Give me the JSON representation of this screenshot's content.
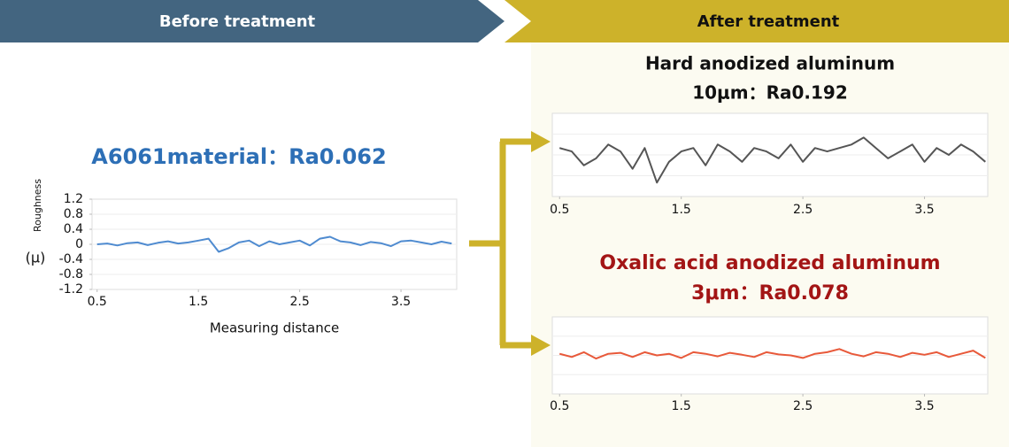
{
  "header": {
    "before": "Before treatment",
    "after": "After treatment"
  },
  "chart_data": [
    {
      "type": "line",
      "title": "A6061material：Ra0.062",
      "ylabel": "Roughness",
      "y_unit": "(μ)",
      "xlabel": "Measuring distance",
      "color": "#4f8bd0",
      "title_color": "#2d6fb6",
      "xlim": [
        0.45,
        4.05
      ],
      "xticks": [
        0.5,
        1.5,
        2.5,
        3.5
      ],
      "ylim": [
        -1.2,
        1.2
      ],
      "yticks": [
        1.2,
        0.8,
        0.4,
        0,
        -0.4,
        -0.8,
        -1.2
      ],
      "x": [
        0.5,
        0.6,
        0.7,
        0.8,
        0.9,
        1.0,
        1.1,
        1.2,
        1.3,
        1.4,
        1.5,
        1.6,
        1.7,
        1.8,
        1.9,
        2.0,
        2.1,
        2.2,
        2.3,
        2.4,
        2.5,
        2.6,
        2.7,
        2.8,
        2.9,
        3.0,
        3.1,
        3.2,
        3.3,
        3.4,
        3.5,
        3.6,
        3.7,
        3.8,
        3.9,
        4.0
      ],
      "values": [
        0,
        0.02,
        -0.03,
        0.03,
        0.05,
        -0.02,
        0.04,
        0.08,
        0.02,
        0.05,
        0.1,
        0.15,
        -0.2,
        -0.1,
        0.05,
        0.1,
        -0.05,
        0.08,
        0,
        0.05,
        0.1,
        -0.03,
        0.15,
        0.2,
        0.08,
        0.05,
        -0.02,
        0.06,
        0.03,
        -0.05,
        0.08,
        0.1,
        0.05,
        0,
        0.07,
        0.02
      ]
    },
    {
      "type": "line",
      "title": "Hard anodized aluminum",
      "subtitle": "10μm：Ra0.192",
      "color": "#555555",
      "title_color": "#111111",
      "xlim": [
        0.44,
        4.02
      ],
      "xticks": [
        0.5,
        1.5,
        2.5,
        3.5
      ],
      "ylim": [
        -1.2,
        1.2
      ],
      "x": [
        0.5,
        0.6,
        0.7,
        0.8,
        0.9,
        1.0,
        1.1,
        1.2,
        1.3,
        1.4,
        1.5,
        1.6,
        1.7,
        1.8,
        1.9,
        2.0,
        2.1,
        2.2,
        2.3,
        2.4,
        2.5,
        2.6,
        2.7,
        2.8,
        2.9,
        3.0,
        3.1,
        3.2,
        3.3,
        3.4,
        3.5,
        3.6,
        3.7,
        3.8,
        3.9,
        4.0
      ],
      "values": [
        0.2,
        0.1,
        -0.3,
        -0.1,
        0.3,
        0.1,
        -0.4,
        0.2,
        -0.8,
        -0.2,
        0.1,
        0.2,
        -0.3,
        0.3,
        0.1,
        -0.2,
        0.2,
        0.1,
        -0.1,
        0.3,
        -0.2,
        0.2,
        0.1,
        0.2,
        0.3,
        0.5,
        0.2,
        -0.1,
        0.1,
        0.3,
        -0.2,
        0.2,
        0.0,
        0.3,
        0.1,
        -0.2
      ]
    },
    {
      "type": "line",
      "title": "Oxalic acid anodized aluminum",
      "subtitle": "3μm：Ra0.078",
      "color": "#e8593a",
      "title_color": "#a31515",
      "xlim": [
        0.44,
        4.02
      ],
      "xticks": [
        0.5,
        1.5,
        2.5,
        3.5
      ],
      "ylim": [
        -1.2,
        1.2
      ],
      "x": [
        0.5,
        0.6,
        0.7,
        0.8,
        0.9,
        1.0,
        1.1,
        1.2,
        1.3,
        1.4,
        1.5,
        1.6,
        1.7,
        1.8,
        1.9,
        2.0,
        2.1,
        2.2,
        2.3,
        2.4,
        2.5,
        2.6,
        2.7,
        2.8,
        2.9,
        3.0,
        3.1,
        3.2,
        3.3,
        3.4,
        3.5,
        3.6,
        3.7,
        3.8,
        3.9,
        4.0
      ],
      "values": [
        0.05,
        -0.05,
        0.1,
        -0.1,
        0.05,
        0.08,
        -0.05,
        0.1,
        0,
        0.05,
        -0.08,
        0.1,
        0.05,
        -0.03,
        0.08,
        0.02,
        -0.05,
        0.1,
        0.03,
        0,
        -0.08,
        0.05,
        0.1,
        0.2,
        0.05,
        -0.03,
        0.1,
        0.05,
        -0.05,
        0.08,
        0.02,
        0.1,
        -0.05,
        0.05,
        0.15,
        -0.08
      ]
    }
  ]
}
